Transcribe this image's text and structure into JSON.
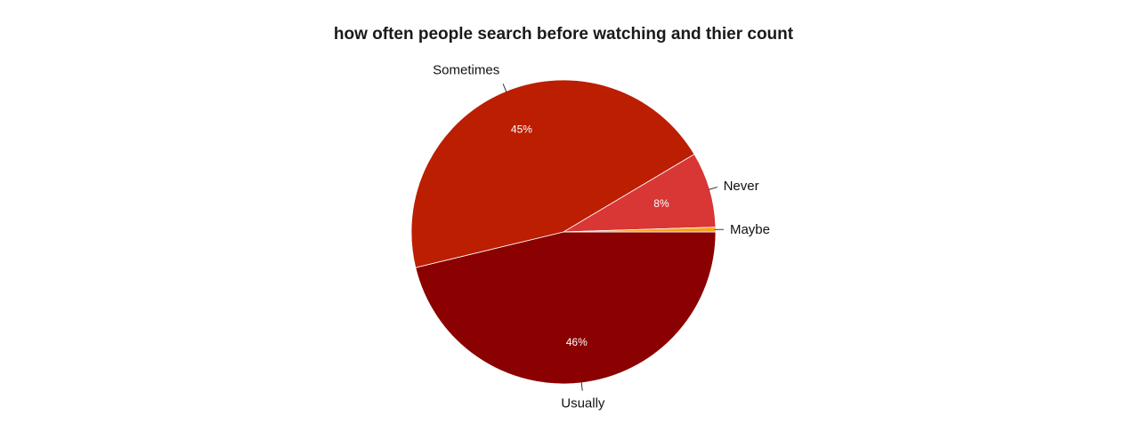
{
  "chart_data": {
    "type": "pie",
    "title": "how often people search before watching and thier count",
    "slices": [
      {
        "label": "Usually",
        "value": 46,
        "percent_label": "46%",
        "color": "#8b0000"
      },
      {
        "label": "Sometimes",
        "value": 45,
        "percent_label": "45%",
        "color": "#bb1e00"
      },
      {
        "label": "Never",
        "value": 8,
        "percent_label": "8%",
        "color": "#d93636"
      },
      {
        "label": "Maybe",
        "value": 0.5,
        "percent_label": "",
        "color": "#f4a21c"
      }
    ],
    "legend": "none"
  }
}
